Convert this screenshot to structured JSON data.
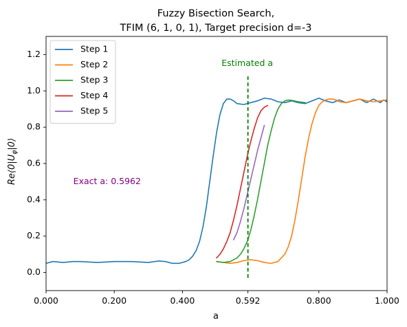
{
  "chart_data": {
    "type": "line",
    "title_lines": [
      "Fuzzy Bisection Search,",
      "TFIM (6, 1, 0, 1), Target precision d=-3"
    ],
    "xlabel": "a",
    "ylabel": "Re⟨0|U_φ|0⟩",
    "xlim": [
      0,
      1
    ],
    "ylim": [
      -0.1,
      1.3
    ],
    "xticks": [
      0,
      0.2,
      0.4,
      0.592,
      0.8,
      1.0
    ],
    "xtick_labels": [
      "0.000",
      "0.200",
      "0.400",
      "0.592",
      "0.800",
      "1.000"
    ],
    "yticks": [
      0,
      0.2,
      0.4,
      0.6,
      0.8,
      1.0,
      1.2
    ],
    "ytick_labels": [
      "0.0",
      "0.2",
      "0.4",
      "0.6",
      "0.8",
      "1.0",
      "1.2"
    ],
    "grid": false,
    "legend_position": "top-left",
    "series": [
      {
        "name": "Step 1",
        "color": "#1f77b4",
        "x": [
          0.0,
          0.02,
          0.05,
          0.08,
          0.1,
          0.15,
          0.2,
          0.25,
          0.3,
          0.33,
          0.35,
          0.37,
          0.39,
          0.41,
          0.42,
          0.43,
          0.44,
          0.45,
          0.46,
          0.47,
          0.48,
          0.49,
          0.5,
          0.51,
          0.52,
          0.53,
          0.54,
          0.55,
          0.56,
          0.58,
          0.6,
          0.62,
          0.64,
          0.66,
          0.68,
          0.7,
          0.72,
          0.74,
          0.76,
          0.78,
          0.8,
          0.82,
          0.84,
          0.86,
          0.88,
          0.9,
          0.92,
          0.94,
          0.96,
          0.98,
          0.99,
          1.0
        ],
        "y": [
          0.05,
          0.06,
          0.055,
          0.06,
          0.06,
          0.055,
          0.06,
          0.06,
          0.055,
          0.063,
          0.06,
          0.05,
          0.05,
          0.06,
          0.07,
          0.09,
          0.12,
          0.17,
          0.25,
          0.36,
          0.5,
          0.64,
          0.77,
          0.87,
          0.93,
          0.955,
          0.955,
          0.945,
          0.93,
          0.925,
          0.935,
          0.945,
          0.96,
          0.955,
          0.94,
          0.935,
          0.945,
          0.935,
          0.93,
          0.945,
          0.96,
          0.945,
          0.935,
          0.95,
          0.935,
          0.945,
          0.955,
          0.935,
          0.955,
          0.935,
          0.95,
          0.94
        ]
      },
      {
        "name": "Step 2",
        "color": "#ff7f0e",
        "x": [
          0.5,
          0.52,
          0.54,
          0.56,
          0.58,
          0.6,
          0.62,
          0.64,
          0.66,
          0.68,
          0.7,
          0.71,
          0.72,
          0.73,
          0.74,
          0.75,
          0.76,
          0.77,
          0.78,
          0.79,
          0.8,
          0.81,
          0.82,
          0.83,
          0.84,
          0.85,
          0.86,
          0.88,
          0.9,
          0.92,
          0.94,
          0.96,
          0.98,
          1.0
        ],
        "y": [
          0.06,
          0.055,
          0.05,
          0.055,
          0.065,
          0.07,
          0.065,
          0.055,
          0.05,
          0.06,
          0.1,
          0.14,
          0.2,
          0.29,
          0.4,
          0.52,
          0.64,
          0.74,
          0.82,
          0.88,
          0.92,
          0.94,
          0.95,
          0.955,
          0.955,
          0.95,
          0.94,
          0.935,
          0.945,
          0.955,
          0.945,
          0.94,
          0.945,
          0.95
        ]
      },
      {
        "name": "Step 3",
        "color": "#2ca02c",
        "x": [
          0.5,
          0.52,
          0.54,
          0.56,
          0.57,
          0.58,
          0.59,
          0.6,
          0.61,
          0.62,
          0.63,
          0.64,
          0.65,
          0.66,
          0.67,
          0.68,
          0.69,
          0.7,
          0.71,
          0.72,
          0.74,
          0.76
        ],
        "y": [
          0.06,
          0.055,
          0.06,
          0.08,
          0.1,
          0.13,
          0.17,
          0.23,
          0.31,
          0.4,
          0.5,
          0.6,
          0.7,
          0.78,
          0.85,
          0.9,
          0.93,
          0.945,
          0.95,
          0.948,
          0.94,
          0.935
        ]
      },
      {
        "name": "Step 4",
        "color": "#d62728",
        "x": [
          0.5,
          0.51,
          0.52,
          0.53,
          0.54,
          0.55,
          0.56,
          0.57,
          0.58,
          0.59,
          0.6,
          0.61,
          0.62,
          0.63,
          0.64,
          0.65
        ],
        "y": [
          0.08,
          0.1,
          0.13,
          0.17,
          0.22,
          0.29,
          0.37,
          0.46,
          0.55,
          0.64,
          0.72,
          0.79,
          0.85,
          0.89,
          0.91,
          0.92
        ]
      },
      {
        "name": "Step 5",
        "color": "#9467bd",
        "x": [
          0.55,
          0.56,
          0.57,
          0.58,
          0.59,
          0.6,
          0.61,
          0.62,
          0.63,
          0.64
        ],
        "y": [
          0.18,
          0.22,
          0.28,
          0.35,
          0.43,
          0.51,
          0.59,
          0.67,
          0.74,
          0.81
        ]
      }
    ],
    "vline": {
      "x": 0.592,
      "ymin": -0.03,
      "ymax": 1.08,
      "color": "#008000",
      "style": "dashed"
    },
    "annotations": [
      {
        "text": "Estimated a",
        "x": 0.59,
        "y": 1.15,
        "color": "#008000"
      },
      {
        "text": "Exact a: 0.5962",
        "x": 0.08,
        "y": 0.5,
        "color": "#800080"
      }
    ]
  }
}
